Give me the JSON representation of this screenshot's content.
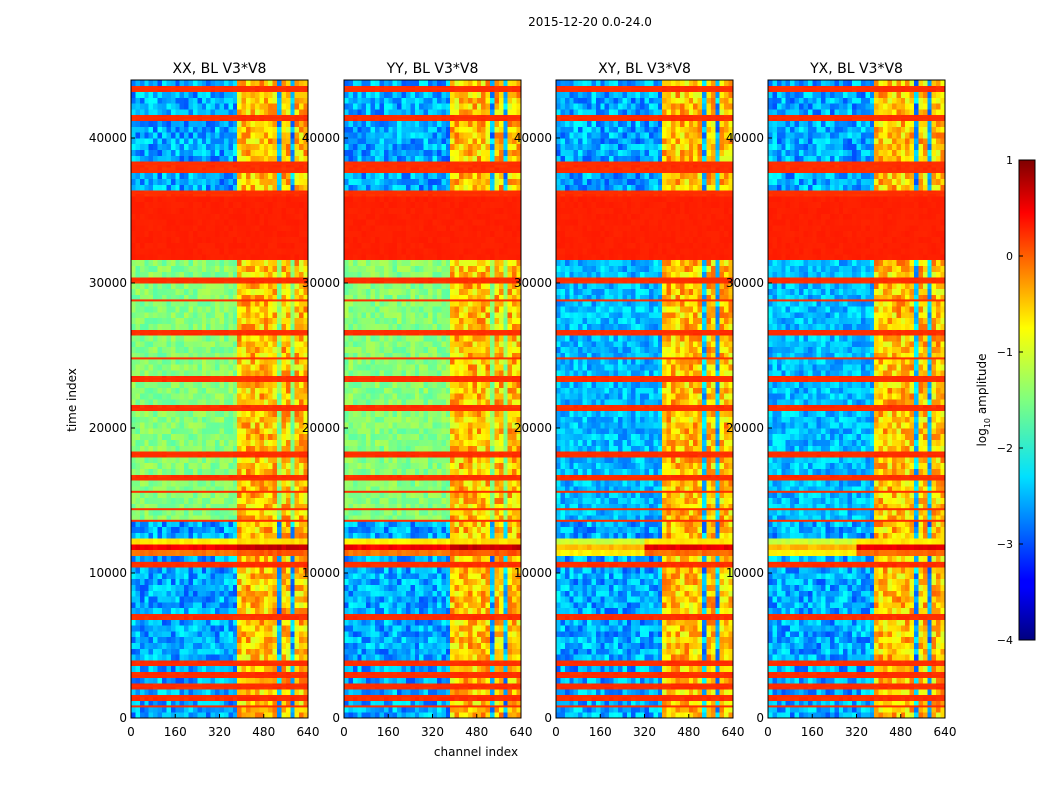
{
  "chart_data": {
    "type": "heatmap",
    "suptitle": "2015-12-20 0.0-24.0",
    "xlabel": "channel index",
    "ylabel": "time index",
    "xlim": [
      0,
      640
    ],
    "ylim": [
      0,
      44000
    ],
    "x_ticks": [
      0,
      160,
      320,
      480,
      640
    ],
    "y_ticks": [
      0,
      10000,
      20000,
      30000,
      40000
    ],
    "panels": [
      {
        "title": "XX, BL V3*V8",
        "mode": "parallel"
      },
      {
        "title": "YY, BL V3*V8",
        "mode": "parallel"
      },
      {
        "title": "XY, BL V3*V8",
        "mode": "cross"
      },
      {
        "title": "YX, BL V3*V8",
        "mode": "cross"
      }
    ],
    "colorbar": {
      "label": "log",
      "label_sub": "10",
      "label_suffix": " amplitude",
      "range": [
        -4,
        1
      ],
      "ticks": [
        1,
        0,
        -1,
        -2,
        -3,
        -4
      ],
      "tick_labels": [
        "1",
        "0",
        "−1",
        "−2",
        "−3",
        "−4"
      ]
    },
    "features": {
      "saturated_time_range": [
        31600,
        35800
      ],
      "rfi_time_range": [
        11000,
        12400
      ],
      "channel_bands": [
        [
          390,
          430
        ],
        [
          440,
          460
        ],
        [
          470,
          490
        ],
        [
          500,
          530
        ],
        [
          540,
          570
        ],
        [
          590,
          640
        ]
      ],
      "flag_lines_time": [
        800,
        1500,
        2200,
        2900,
        3700,
        7100,
        10700,
        13600,
        14400,
        15600,
        16500,
        18200,
        21300,
        23400,
        24800,
        26600,
        28800,
        30200,
        36200,
        37700,
        38200,
        41400,
        43400
      ]
    }
  }
}
